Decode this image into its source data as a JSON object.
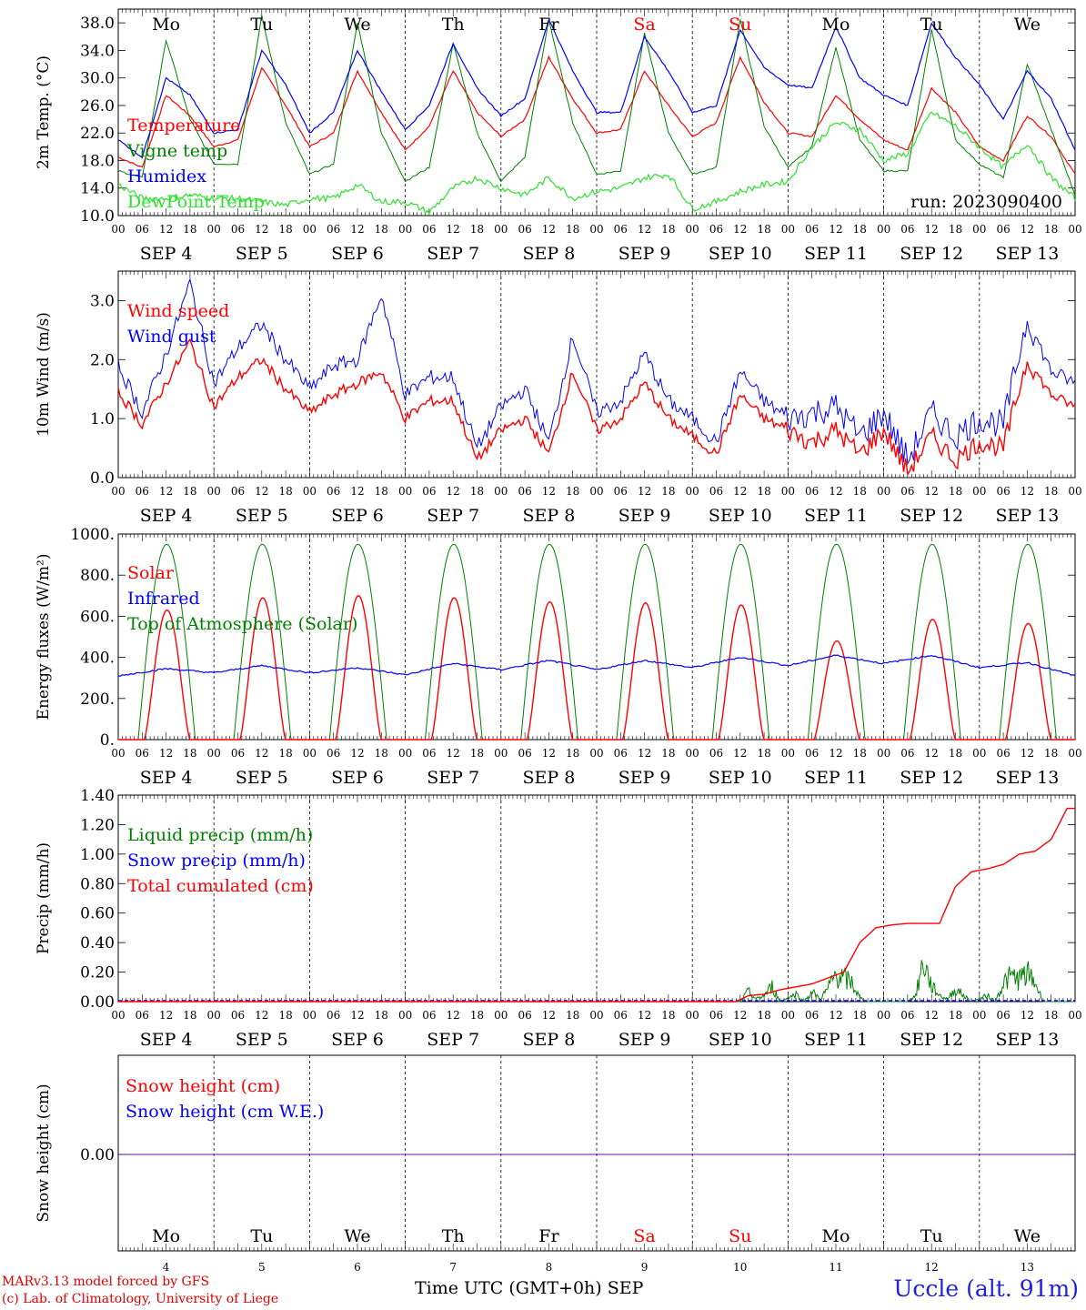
{
  "colors": {
    "red": "#ff0000",
    "blue": "#0000ff",
    "green": "#008000",
    "lightgreen": "#2ee02e",
    "purple": "#6600aa",
    "sat_sun": "#ff0000",
    "weekday": "#000000"
  },
  "days": [
    "Mo",
    "Tu",
    "We",
    "Th",
    "Fr",
    "Sa",
    "Su",
    "Mo",
    "Tu",
    "We"
  ],
  "day_colors": [
    "#000000",
    "#000000",
    "#000000",
    "#000000",
    "#000000",
    "#ff0000",
    "#ff0000",
    "#000000",
    "#000000",
    "#000000"
  ],
  "dates": [
    "SEP  4",
    "SEP  5",
    "SEP  6",
    "SEP  7",
    "SEP  8",
    "SEP  9",
    "SEP 10",
    "SEP 11",
    "SEP 12",
    "SEP 13"
  ],
  "bottom_dates": [
    "4",
    "5",
    "6",
    "7",
    "8",
    "9",
    "10",
    "11",
    "12",
    "13"
  ],
  "hour_ticks": [
    "00",
    "06",
    "12",
    "18"
  ],
  "last_hour_tick": "00",
  "run_label": "run: 2023090400",
  "footer": {
    "model": "MARv3.13 model forced by GFS",
    "credit": "(c) Lab. of Climatology, University of Liege",
    "time_label": "Time UTC (GMT+0h) SEP",
    "station": "Uccle (alt. 91m)"
  },
  "chart_data": [
    {
      "type": "line",
      "ylabel": "2m Temp. (°C)",
      "ylim": [
        10,
        40
      ],
      "yticks": [
        "10.0",
        "14.0",
        "18.0",
        "22.0",
        "26.0",
        "30.0",
        "34.0",
        "38.0"
      ],
      "x_hours": [
        0,
        6,
        12,
        18,
        24,
        30,
        36,
        42,
        48,
        54,
        60,
        66,
        72,
        78,
        84,
        90,
        96,
        102,
        108,
        114,
        120,
        126,
        132,
        138,
        144,
        150,
        156,
        162,
        168,
        174,
        180,
        186,
        192,
        198,
        204,
        210,
        216,
        222,
        228,
        234,
        240
      ],
      "series": [
        {
          "name": "Temperature",
          "color": "#ff0000",
          "values": [
            18.5,
            17.0,
            27.5,
            24.5,
            20.0,
            21.0,
            31.5,
            26.0,
            20.0,
            22.0,
            31.0,
            25.0,
            19.5,
            23.0,
            31.0,
            25.0,
            21.5,
            24.0,
            33.0,
            27.0,
            22.0,
            22.5,
            31.0,
            26.0,
            21.5,
            23.5,
            33.0,
            26.5,
            22.0,
            21.5,
            27.5,
            24.0,
            21.0,
            19.5,
            28.5,
            25.0,
            20.0,
            18.0,
            24.5,
            21.5,
            16.0
          ]
        },
        {
          "name": "Vigne temp",
          "color": "#008000",
          "values": [
            16.5,
            15.5,
            35.5,
            24.0,
            17.5,
            17.5,
            39.0,
            23.5,
            16.0,
            17.5,
            38.0,
            22.0,
            15.0,
            17.0,
            35.0,
            22.0,
            15.0,
            18.5,
            38.5,
            23.5,
            16.0,
            16.5,
            36.5,
            22.0,
            16.0,
            17.0,
            38.5,
            23.0,
            17.0,
            20.0,
            34.5,
            21.0,
            16.5,
            16.5,
            37.0,
            21.0,
            17.5,
            15.5,
            32.0,
            22.5,
            13.0
          ]
        },
        {
          "name": "Humidex",
          "color": "#0000ff",
          "values": [
            21.0,
            18.5,
            30.0,
            27.5,
            22.0,
            22.5,
            34.0,
            29.0,
            22.0,
            25.0,
            34.0,
            28.0,
            22.5,
            26.0,
            35.0,
            28.5,
            24.5,
            27.0,
            38.5,
            31.0,
            25.0,
            25.0,
            36.0,
            31.0,
            25.0,
            26.0,
            37.0,
            31.5,
            29.0,
            28.5,
            37.5,
            30.0,
            27.5,
            26.0,
            38.0,
            33.0,
            29.0,
            24.0,
            31.0,
            27.0,
            19.5
          ]
        },
        {
          "name": "DewPoint Temp",
          "color": "#2ee02e",
          "values": [
            14.5,
            12.5,
            12.5,
            13.0,
            12.5,
            12.5,
            12.0,
            11.5,
            12.5,
            12.5,
            14.5,
            12.0,
            12.0,
            10.5,
            14.0,
            15.5,
            14.0,
            13.0,
            15.5,
            12.5,
            13.5,
            14.0,
            15.5,
            16.0,
            11.0,
            12.0,
            13.5,
            14.5,
            15.0,
            20.0,
            23.5,
            22.5,
            18.0,
            19.0,
            25.0,
            23.0,
            20.0,
            17.0,
            20.5,
            15.5,
            12.5
          ]
        }
      ]
    },
    {
      "type": "line",
      "ylabel": "10m Wind (m/s)",
      "ylim": [
        0,
        3.5
      ],
      "yticks": [
        "0.0",
        "1.0",
        "2.0",
        "3.0"
      ],
      "x_hours": [
        0,
        6,
        12,
        18,
        24,
        30,
        36,
        42,
        48,
        54,
        60,
        66,
        72,
        78,
        84,
        90,
        96,
        102,
        108,
        114,
        120,
        126,
        132,
        138,
        144,
        150,
        156,
        162,
        168,
        174,
        180,
        186,
        192,
        198,
        204,
        210,
        216,
        222,
        228,
        234,
        240
      ],
      "series": [
        {
          "name": "Wind speed",
          "color": "#ff0000",
          "values": [
            1.45,
            0.9,
            1.6,
            2.3,
            1.2,
            1.7,
            2.0,
            1.5,
            1.1,
            1.4,
            1.6,
            1.8,
            1.0,
            1.3,
            1.3,
            0.3,
            0.8,
            1.0,
            0.4,
            1.8,
            0.8,
            1.0,
            1.6,
            1.0,
            0.7,
            0.4,
            1.4,
            1.0,
            0.8,
            0.6,
            0.8,
            0.4,
            0.8,
            0.1,
            0.7,
            0.3,
            0.6,
            0.5,
            2.0,
            1.4,
            1.2
          ]
        },
        {
          "name": "Wind gust",
          "color": "#0000ff",
          "values": [
            1.9,
            1.1,
            2.1,
            3.3,
            1.6,
            2.2,
            2.6,
            2.0,
            1.5,
            1.9,
            2.0,
            3.1,
            1.4,
            1.7,
            1.7,
            0.5,
            1.2,
            1.5,
            0.6,
            2.4,
            1.1,
            1.3,
            2.1,
            1.3,
            1.0,
            0.6,
            1.8,
            1.3,
            1.0,
            1.1,
            1.2,
            0.7,
            1.1,
            0.3,
            1.1,
            0.7,
            1.0,
            0.9,
            2.7,
            1.8,
            1.6
          ]
        }
      ]
    },
    {
      "type": "line",
      "ylabel": "Energy fluxes (W/m²)",
      "ylim": [
        0,
        1000
      ],
      "yticks": [
        "0.",
        "200.",
        "400.",
        "600.",
        "800.",
        "1000."
      ],
      "solar_peaks": [
        630,
        690,
        700,
        690,
        670,
        665,
        655,
        480,
        585,
        565
      ],
      "toa_peak": 950,
      "series": [
        {
          "name": "Solar",
          "color": "#ff0000"
        },
        {
          "name": "Infrared",
          "color": "#0000ff",
          "x_hours": [
            0,
            12,
            24,
            36,
            48,
            60,
            72,
            84,
            96,
            108,
            120,
            132,
            144,
            156,
            168,
            180,
            192,
            204,
            216,
            228,
            240
          ],
          "values": [
            310,
            345,
            325,
            360,
            325,
            350,
            315,
            370,
            340,
            385,
            340,
            385,
            350,
            400,
            360,
            410,
            370,
            410,
            350,
            375,
            310
          ]
        },
        {
          "name": "Top of Atmosphere (Solar)",
          "color": "#008000"
        }
      ]
    },
    {
      "type": "line",
      "ylabel": "Precip (mm/h)",
      "ylim": [
        0,
        1.4
      ],
      "yticks": [
        "0.00",
        "0.20",
        "0.40",
        "0.60",
        "0.80",
        "1.00",
        "1.20",
        "1.40"
      ],
      "series": [
        {
          "name": "Liquid precip (mm/h)",
          "color": "#008000",
          "x_hours": [
            0,
            156,
            158,
            160,
            162,
            164,
            166,
            168,
            170,
            172,
            174,
            176,
            178,
            180,
            182,
            184,
            186,
            188,
            190,
            192,
            194,
            196,
            198,
            200,
            202,
            204,
            206,
            208,
            210,
            212,
            214,
            216,
            218,
            220,
            222,
            224,
            226,
            228,
            230,
            232,
            234,
            236,
            240
          ],
          "values": [
            0,
            0,
            0.08,
            0.02,
            0.05,
            0.12,
            0,
            0.03,
            0.06,
            0,
            0.08,
            0.02,
            0.1,
            0.22,
            0.18,
            0.15,
            0.03,
            0,
            0,
            0,
            0,
            0,
            0,
            0.05,
            0.32,
            0.12,
            0.05,
            0.02,
            0.1,
            0.05,
            0,
            0.02,
            0.05,
            0,
            0.15,
            0.2,
            0.18,
            0.22,
            0.15,
            0,
            0,
            0,
            0
          ]
        },
        {
          "name": "Snow precip (mm/h)",
          "color": "#0000ff",
          "x_hours": [
            0,
            240
          ],
          "values": [
            0,
            0
          ]
        },
        {
          "name": "Total cumulated (cm)",
          "color": "#ff0000",
          "x_hours": [
            0,
            155,
            158,
            162,
            166,
            170,
            174,
            178,
            182,
            186,
            190,
            194,
            198,
            202,
            206,
            210,
            214,
            218,
            222,
            226,
            230,
            234,
            238,
            240
          ],
          "values": [
            0,
            0,
            0.04,
            0.05,
            0.08,
            0.1,
            0.12,
            0.16,
            0.2,
            0.4,
            0.5,
            0.52,
            0.53,
            0.53,
            0.53,
            0.78,
            0.88,
            0.9,
            0.93,
            1.0,
            1.02,
            1.1,
            1.31,
            1.31
          ]
        }
      ]
    },
    {
      "type": "line",
      "ylabel": "Snow height (cm)",
      "yticks": [
        "0.00"
      ],
      "series": [
        {
          "name": "Snow height (cm)",
          "color": "#ff0000",
          "values": [
            0,
            0
          ]
        },
        {
          "name": "Snow height (cm W.E.)",
          "color": "#0000ff",
          "values": [
            0,
            0
          ]
        }
      ]
    }
  ]
}
